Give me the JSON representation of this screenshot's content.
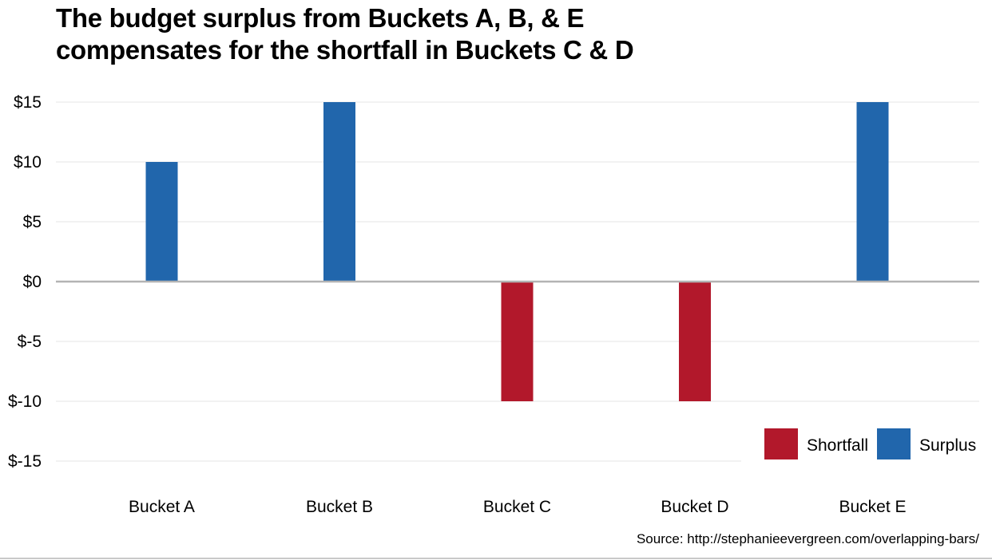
{
  "title": {
    "line1": "The budget surplus from Buckets A, B, & E",
    "line2": "compensates for the shortfall in Buckets C & D"
  },
  "source": "Source: http://stephanieevergreen.com/overlapping-bars/",
  "colors": {
    "shortfall": "#b2182b",
    "surplus": "#2166ac",
    "gridline": "#e6e6e6",
    "zero_line": "#b3b3b3"
  },
  "chart_data": {
    "type": "bar",
    "categories": [
      "Bucket A",
      "Bucket B",
      "Bucket C",
      "Bucket D",
      "Bucket E"
    ],
    "series": [
      {
        "name": "Shortfall",
        "values": [
          0,
          0,
          -10,
          -10,
          0
        ]
      },
      {
        "name": "Surplus",
        "values": [
          10,
          15,
          0,
          0,
          15
        ]
      }
    ],
    "yticks": [
      15,
      10,
      5,
      0,
      -5,
      -10,
      -15
    ],
    "ytick_labels": [
      "$15",
      "$10",
      "$5",
      "$0",
      "$-5",
      "$-10",
      "$-15"
    ],
    "ylim": [
      -15,
      15
    ],
    "grid": true,
    "legend": {
      "position": "bottom-right",
      "entries": [
        "Shortfall",
        "Surplus"
      ]
    }
  }
}
